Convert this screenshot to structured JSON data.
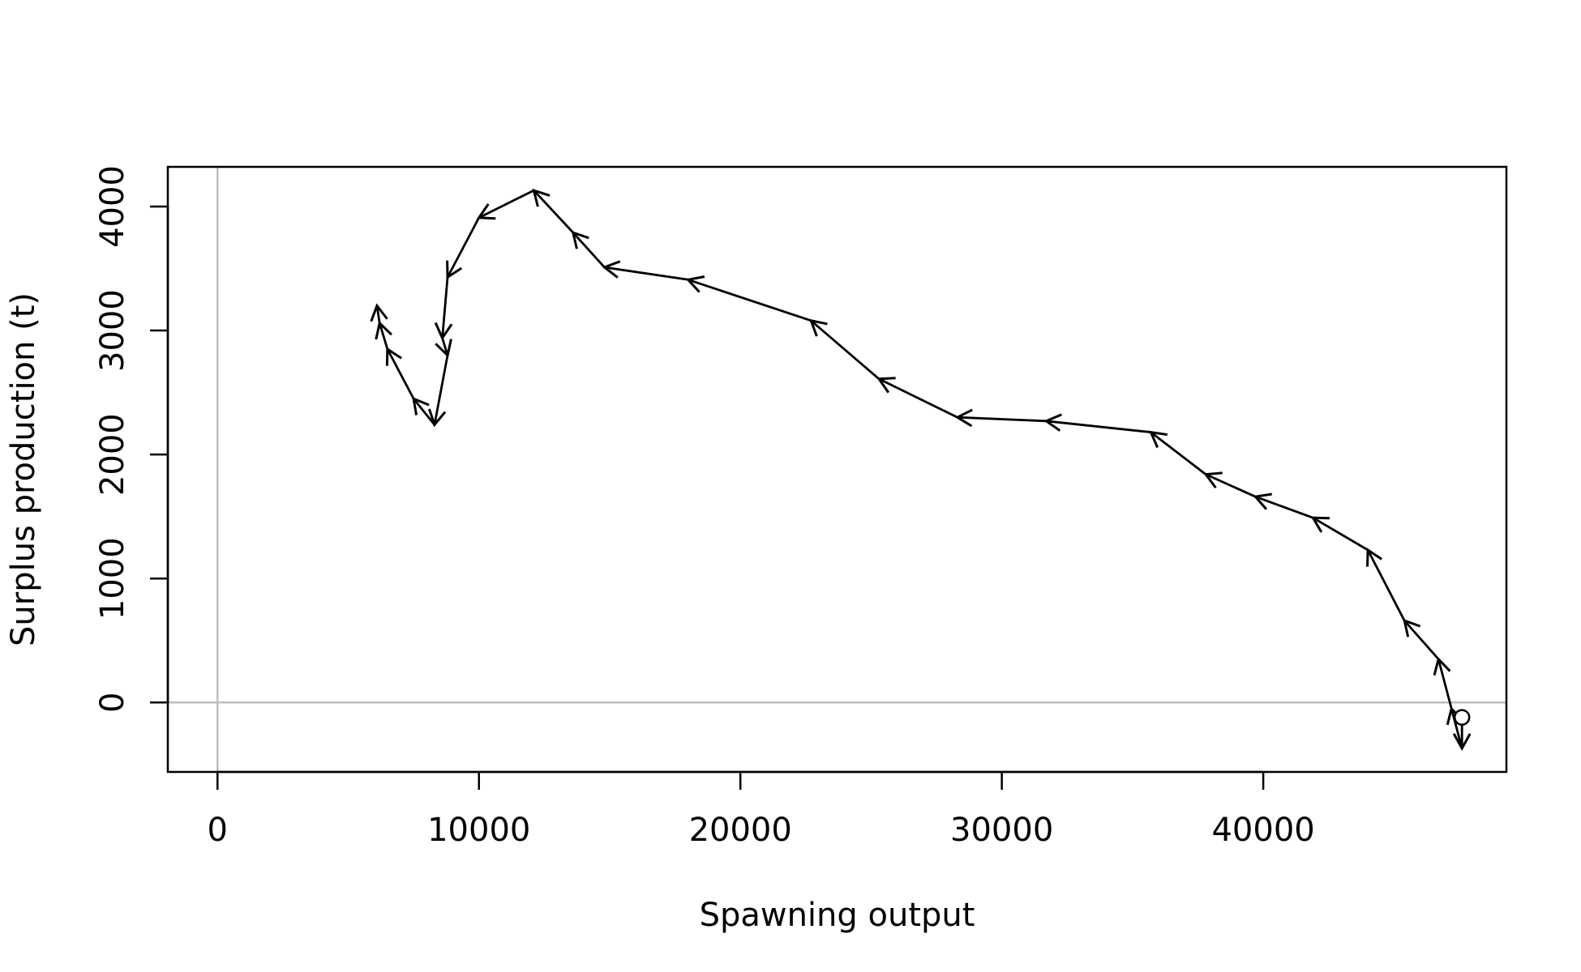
{
  "chart_data": {
    "type": "line",
    "xlabel": "Spawning output",
    "ylabel": "Surplus production (t)",
    "xlim": [
      -1900,
      49300
    ],
    "ylim": [
      -560,
      4320
    ],
    "xticks": [
      0,
      10000,
      20000,
      30000,
      40000
    ],
    "yticks": [
      0,
      1000,
      2000,
      3000,
      4000
    ],
    "x_tick_labels": [
      "0",
      "10000",
      "20000",
      "30000",
      "40000"
    ],
    "y_tick_labels": [
      "0",
      "1000",
      "2000",
      "3000",
      "4000"
    ],
    "reference_lines": {
      "x": 0,
      "y": 0,
      "color": "#bebebe"
    },
    "grid": false,
    "line_color": "#000000",
    "start_marker": "open-circle",
    "series": [
      {
        "points": [
          [
            47600,
            -120
          ],
          [
            47600,
            -370
          ],
          [
            47200,
            -50
          ],
          [
            46700,
            350
          ],
          [
            45400,
            660
          ],
          [
            44000,
            1230
          ],
          [
            41900,
            1490
          ],
          [
            39700,
            1660
          ],
          [
            37800,
            1840
          ],
          [
            35700,
            2180
          ],
          [
            31700,
            2270
          ],
          [
            28300,
            2300
          ],
          [
            25300,
            2610
          ],
          [
            22700,
            3080
          ],
          [
            18000,
            3410
          ],
          [
            14800,
            3510
          ],
          [
            13600,
            3790
          ],
          [
            12100,
            4130
          ],
          [
            10000,
            3910
          ],
          [
            8800,
            3430
          ],
          [
            8600,
            2940
          ],
          [
            8800,
            2800
          ],
          [
            8300,
            2240
          ],
          [
            7500,
            2450
          ],
          [
            6500,
            2850
          ],
          [
            6200,
            3060
          ],
          [
            6100,
            3200
          ]
        ]
      }
    ]
  }
}
